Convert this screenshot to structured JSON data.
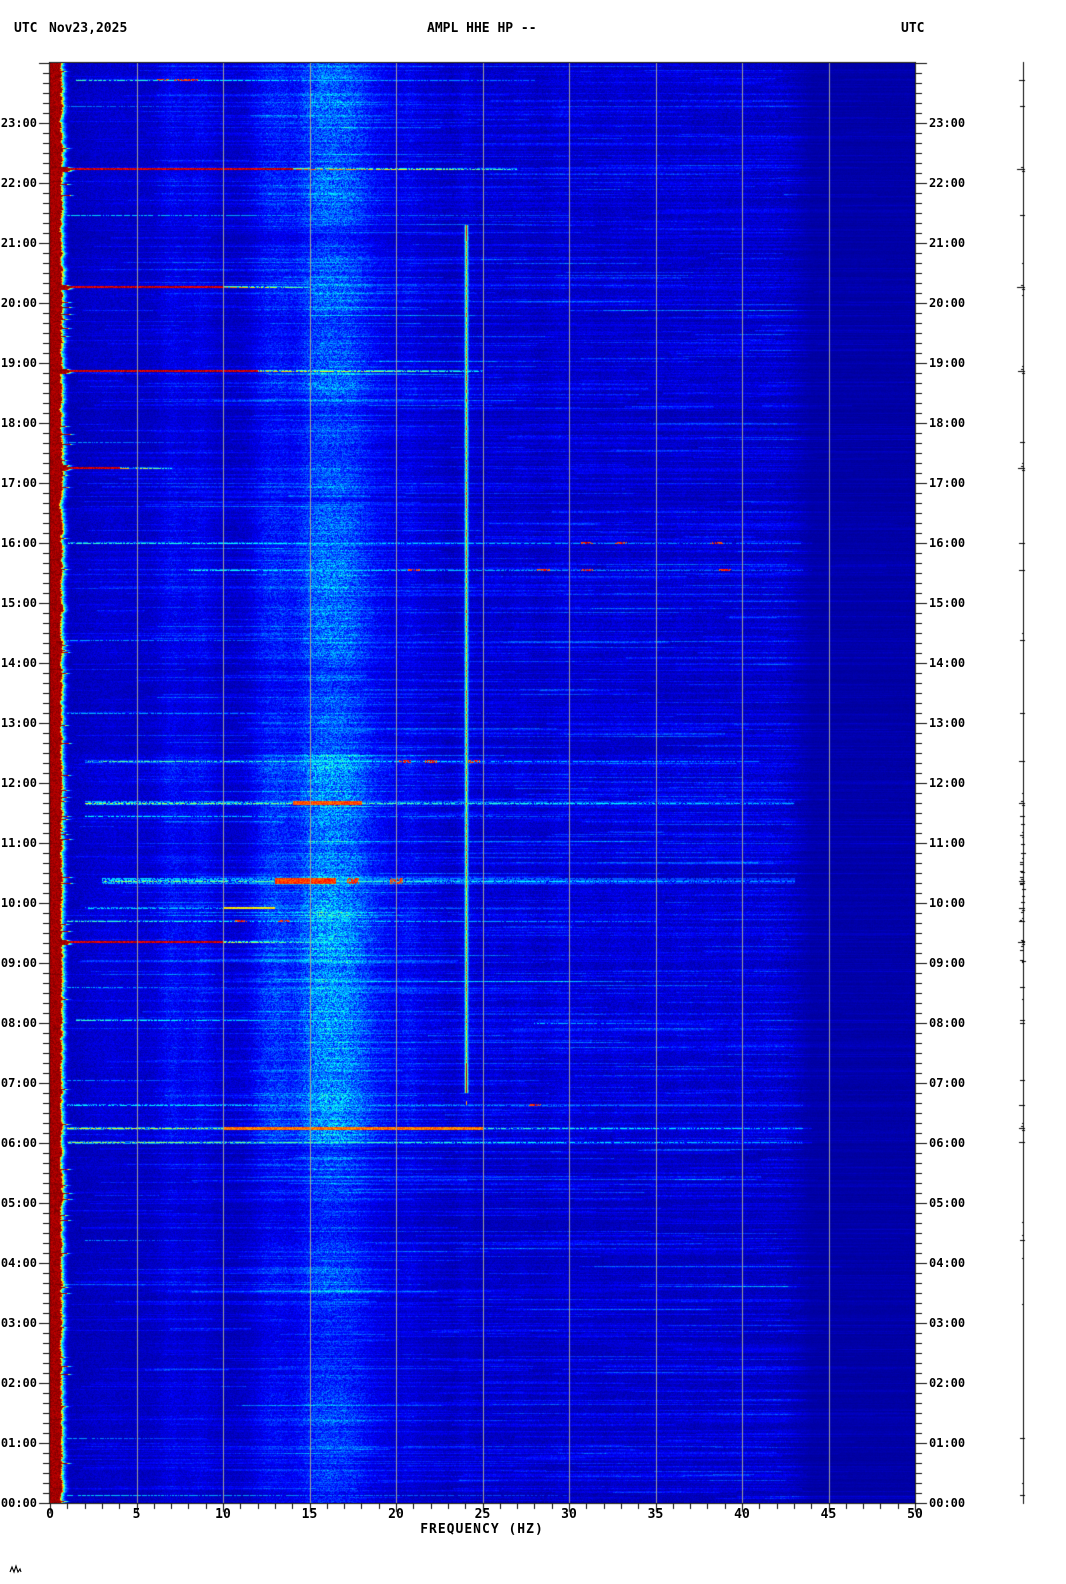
{
  "header": {
    "tz_left": "UTC",
    "date": "Nov23,2025",
    "title": "AMPL HHE HP --",
    "tz_right": "UTC"
  },
  "chart_data": {
    "type": "heatmap",
    "subtype": "seismic-spectrogram",
    "title": "AMPL HHE HP --",
    "date": "Nov23,2025",
    "timezone": "UTC",
    "x_axis": {
      "label": "FREQUENCY (HZ)",
      "range_hz": [
        0,
        50
      ],
      "ticks": [
        0,
        5,
        10,
        15,
        20,
        25,
        30,
        35,
        40,
        45,
        50
      ],
      "minor_step_hz": 1
    },
    "y_axis": {
      "range_hours": 24,
      "top_time": "24:00",
      "bottom_time": "00:00",
      "tick_labels": [
        "23:00",
        "22:00",
        "21:00",
        "20:00",
        "19:00",
        "18:00",
        "17:00",
        "16:00",
        "15:00",
        "14:00",
        "13:00",
        "12:00",
        "11:00",
        "10:00",
        "09:00",
        "08:00",
        "07:00",
        "06:00",
        "05:00",
        "04:00",
        "03:00",
        "02:00",
        "01:00",
        "00:00"
      ],
      "minor_step_minutes": 10
    },
    "grid": {
      "lines_hz": [
        5,
        10,
        15,
        20,
        25,
        30,
        35,
        40,
        45
      ],
      "color": "#9e9e9e"
    },
    "colormap": "jet",
    "background_color": "#000096",
    "low_freq_band": {
      "saturated_red_to_hz": 1.1,
      "fringe_fades_by_hz": 3.0,
      "color": "#aa0000"
    },
    "quiet_zone_above_hz": 43.5,
    "persistent_tone": {
      "hz": 24.05,
      "start_time_utc": "06:50",
      "end_time_utc": "21:18",
      "t_start": 6.85,
      "t_end": 21.3,
      "bright_tip": true
    },
    "vertical_noise_bands_hz": [
      7.0,
      8.7,
      12.5,
      13.4,
      15.2,
      16.4,
      17.4,
      18.3,
      20.8,
      24.05,
      29.5,
      33.0,
      36.5,
      40.0
    ],
    "events": [
      {
        "time": "23:43",
        "t": 23.72,
        "f0": 1.5,
        "f1": 28,
        "fr": 0,
        "a": 0.5,
        "th": 2,
        "dots": [
          6.5,
          7.5,
          8.2
        ]
      },
      {
        "time": "23:17",
        "t": 23.28,
        "f0": 1,
        "f1": 14,
        "fr": 0,
        "a": 0.3,
        "th": 1
      },
      {
        "time": "22:14",
        "t": 22.23,
        "f0": 0,
        "f1": 27,
        "fr": 14,
        "a": 0.95,
        "th": 2
      },
      {
        "time": "21:28",
        "t": 21.47,
        "f0": 1,
        "f1": 30,
        "fr": 0,
        "a": 0.42,
        "th": 1
      },
      {
        "time": "20:16",
        "t": 20.27,
        "f0": 0,
        "f1": 15,
        "fr": 10,
        "a": 0.92,
        "th": 2
      },
      {
        "time": "18:52",
        "t": 18.87,
        "f0": 0,
        "f1": 25,
        "fr": 12,
        "a": 0.88,
        "th": 2
      },
      {
        "time": "17:41",
        "t": 17.68,
        "f0": 1,
        "f1": 9,
        "fr": 0,
        "a": 0.4,
        "th": 1
      },
      {
        "time": "17:15",
        "t": 17.25,
        "f0": 0,
        "f1": 7,
        "fr": 4,
        "a": 0.8,
        "th": 2
      },
      {
        "time": "16:00",
        "t": 16.0,
        "f0": 1,
        "f1": 44,
        "fr": 0,
        "a": 0.5,
        "th": 2,
        "dots": [
          31,
          33,
          38.5
        ]
      },
      {
        "time": "15:33",
        "t": 15.55,
        "f0": 8,
        "f1": 44,
        "fr": 0,
        "a": 0.55,
        "th": 2,
        "dots": [
          21,
          28.5,
          31,
          39
        ]
      },
      {
        "time": "14:23",
        "t": 14.38,
        "f0": 1,
        "f1": 20,
        "fr": 0,
        "a": 0.32,
        "th": 1
      },
      {
        "time": "13:10",
        "t": 13.17,
        "f0": 1,
        "f1": 26,
        "fr": 0,
        "a": 0.42,
        "th": 2
      },
      {
        "time": "12:22",
        "t": 12.37,
        "f0": 2,
        "f1": 41,
        "fr": 0,
        "a": 0.55,
        "th": 3,
        "dots": [
          20.5,
          22,
          24.5
        ]
      },
      {
        "time": "11:40",
        "t": 11.67,
        "f0": 2,
        "f1": 43,
        "fr": 0,
        "a": 0.66,
        "th": 4,
        "hot": [
          14,
          18
        ]
      },
      {
        "time": "11:27",
        "t": 11.45,
        "f0": 2,
        "f1": 30,
        "fr": 0,
        "a": 0.45,
        "th": 2
      },
      {
        "time": "10:22",
        "t": 10.37,
        "f0": 3,
        "f1": 43,
        "fr": 0,
        "a": 0.68,
        "th": 6,
        "hot": [
          13,
          16.5
        ],
        "dots": [
          17.5,
          20
        ]
      },
      {
        "time": "09:55",
        "t": 9.92,
        "f0": 2,
        "f1": 30,
        "fr": 0,
        "a": 0.5,
        "th": 2,
        "hot": [
          10,
          13
        ]
      },
      {
        "time": "09:42",
        "t": 9.7,
        "f0": 1,
        "f1": 35,
        "fr": 0,
        "a": 0.55,
        "th": 2,
        "dots": [
          11,
          13.5
        ]
      },
      {
        "time": "09:21",
        "t": 9.35,
        "f0": 0,
        "f1": 18,
        "fr": 10,
        "a": 0.85,
        "th": 2
      },
      {
        "time": "08:36",
        "t": 8.6,
        "f0": 1,
        "f1": 12,
        "fr": 0,
        "a": 0.35,
        "th": 1
      },
      {
        "time": "08:03",
        "t": 8.05,
        "f0": 1.5,
        "f1": 20,
        "fr": 0,
        "a": 0.45,
        "th": 2
      },
      {
        "time": "08:00",
        "t": 8.0,
        "f0": 28,
        "f1": 37,
        "fr": 0,
        "a": 0.4,
        "th": 2
      },
      {
        "time": "07:03",
        "t": 7.05,
        "f0": 1,
        "f1": 10,
        "fr": 0,
        "a": 0.4,
        "th": 1
      },
      {
        "time": "06:38",
        "t": 6.63,
        "f0": 1,
        "f1": 44,
        "fr": 0,
        "a": 0.5,
        "th": 2,
        "dots": [
          28
        ]
      },
      {
        "time": "06:15",
        "t": 6.25,
        "f0": 1,
        "f1": 44,
        "fr": 0,
        "a": 0.62,
        "th": 3,
        "hot": [
          10,
          25
        ]
      },
      {
        "time": "06:01",
        "t": 6.02,
        "f0": 1,
        "f1": 44,
        "fr": 0,
        "a": 0.58,
        "th": 3
      },
      {
        "time": "04:23",
        "t": 4.38,
        "f0": 2,
        "f1": 10,
        "fr": 0,
        "a": 0.33,
        "th": 1
      },
      {
        "time": "01:05",
        "t": 1.08,
        "f0": 1,
        "f1": 9,
        "fr": 0,
        "a": 0.35,
        "th": 1
      },
      {
        "time": "00:08",
        "t": 0.13,
        "f0": 1,
        "f1": 30,
        "fr": 0,
        "a": 0.4,
        "th": 1
      }
    ],
    "helicorder_trace": {
      "present": true,
      "color": "#000000"
    }
  },
  "corner_mark": "w"
}
